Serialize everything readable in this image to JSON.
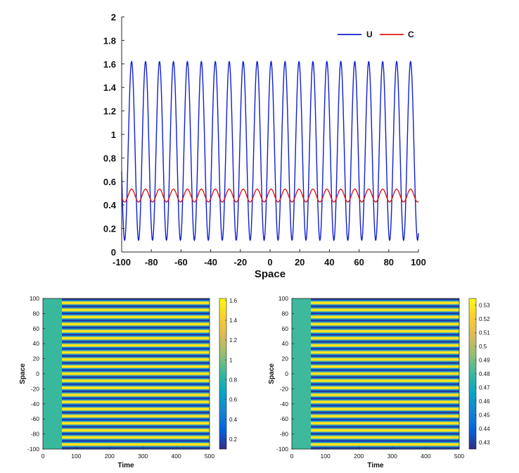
{
  "colors": {
    "U": "#1020d0",
    "C": "#e01818",
    "axis": "#262626",
    "background": "#ffffff"
  },
  "chart_data": [
    {
      "type": "line",
      "xlabel": "Space",
      "ylabel": "",
      "xlim": [
        -100,
        100
      ],
      "ylim": [
        0,
        2
      ],
      "xticks": [
        -100,
        -80,
        -60,
        -40,
        -20,
        0,
        20,
        40,
        60,
        80,
        100
      ],
      "yticks": [
        0,
        0.2,
        0.4,
        0.6,
        0.8,
        1,
        1.2,
        1.4,
        1.6,
        1.8,
        2
      ],
      "legend": {
        "placement": "top-right"
      },
      "series": [
        {
          "name": "U",
          "color": "#1020d0",
          "wave": {
            "mean": 0.86,
            "amplitude": 0.76,
            "max": 1.62,
            "min": 0.1,
            "period": 9.4,
            "x_at_min": -98.0
          }
        },
        {
          "name": "C",
          "color": "#e01818",
          "wave": {
            "mean": 0.48,
            "amplitude": 0.055,
            "max": 0.535,
            "min": 0.425,
            "period": 9.4,
            "x_at_min": -98.0
          }
        }
      ]
    },
    {
      "type": "heatmap",
      "variable": "U",
      "xlabel": "Time",
      "ylabel": "Space",
      "xlim": [
        0,
        500
      ],
      "ylim": [
        -100,
        100
      ],
      "xticks": [
        0,
        100,
        200,
        300,
        400,
        500
      ],
      "yticks": [
        -100,
        -80,
        -60,
        -40,
        -20,
        0,
        20,
        40,
        60,
        80,
        100
      ],
      "colorbar": {
        "min": 0.1,
        "max": 1.62,
        "ticks": [
          0.2,
          0.4,
          0.6,
          0.8,
          1,
          1.2,
          1.4,
          1.6
        ]
      },
      "uniform_value": 0.86,
      "onset_time": 57,
      "stripe_period_space": 9.4,
      "stripe_count": 21
    },
    {
      "type": "heatmap",
      "variable": "C",
      "xlabel": "Time",
      "ylabel": "Space",
      "xlim": [
        0,
        500
      ],
      "ylim": [
        -100,
        100
      ],
      "xticks": [
        0,
        100,
        200,
        300,
        400,
        500
      ],
      "yticks": [
        -100,
        -80,
        -60,
        -40,
        -20,
        0,
        20,
        40,
        60,
        80,
        100
      ],
      "colorbar": {
        "min": 0.425,
        "max": 0.535,
        "ticks": [
          0.43,
          0.44,
          0.45,
          0.46,
          0.47,
          0.48,
          0.49,
          0.5,
          0.51,
          0.52,
          0.53
        ]
      },
      "uniform_value": 0.481,
      "onset_time": 57,
      "stripe_period_space": 9.4,
      "stripe_count": 21
    }
  ]
}
